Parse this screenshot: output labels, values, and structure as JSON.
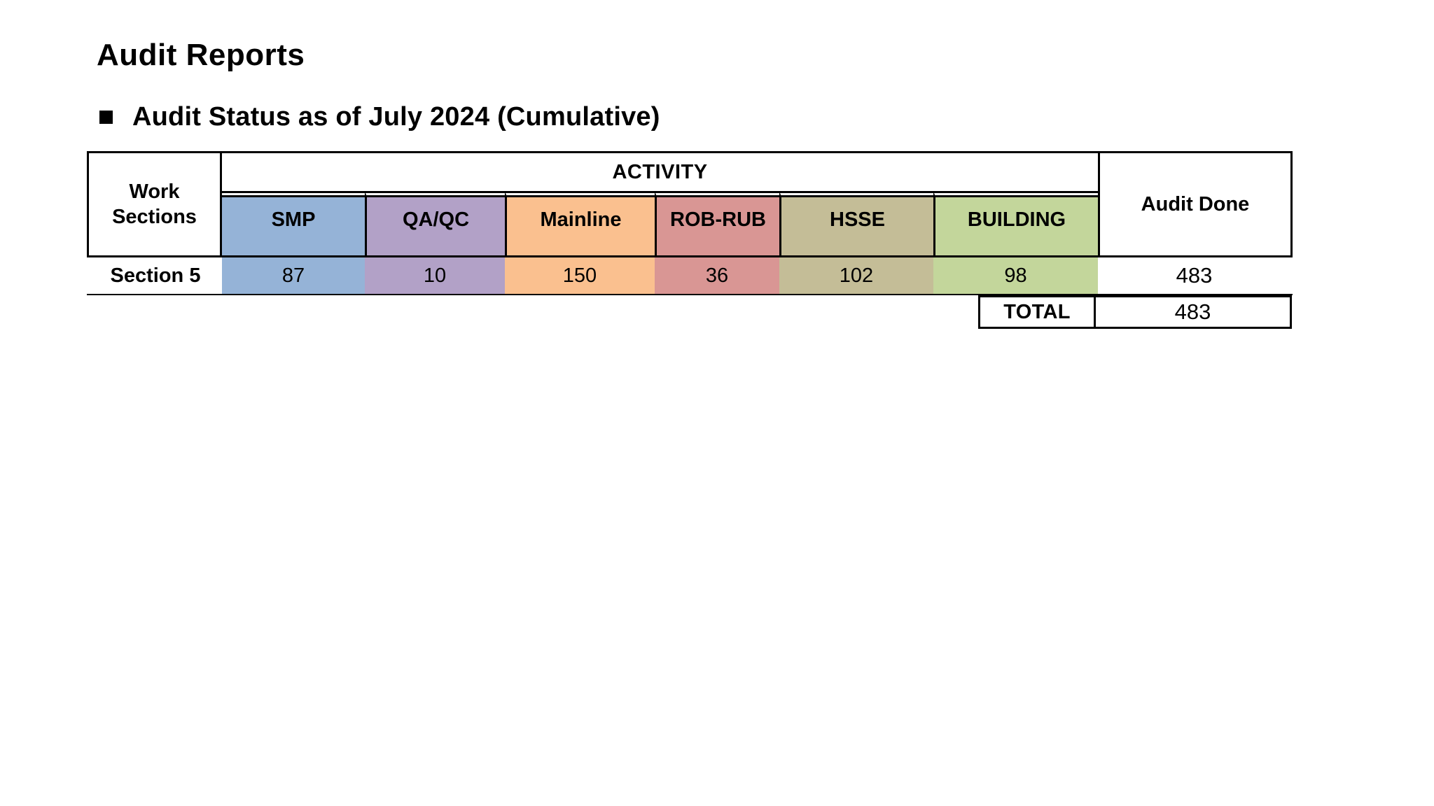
{
  "page": {
    "title": "Audit Reports",
    "bullet": "■",
    "subtitle": "Audit Status as of July 2024 (Cumulative)"
  },
  "table": {
    "activity_header": "ACTIVITY",
    "work_sections_header": "Work Sections",
    "audit_done_header": "Audit Done",
    "columns": [
      {
        "label": "SMP",
        "color": "#95B3D7"
      },
      {
        "label": "QA/QC",
        "color": "#B2A1C7"
      },
      {
        "label": "Mainline",
        "color": "#FAC08F"
      },
      {
        "label": "ROB-RUB",
        "color": "#D99694"
      },
      {
        "label": "HSSE",
        "color": "#C4BD97"
      },
      {
        "label": "BUILDING",
        "color": "#C3D69B"
      }
    ],
    "rows": [
      {
        "section": "Section 5",
        "values": [
          "87",
          "10",
          "150",
          "36",
          "102",
          "98"
        ],
        "audit_done": "483"
      }
    ],
    "total_label": "TOTAL",
    "total_value": "483"
  }
}
